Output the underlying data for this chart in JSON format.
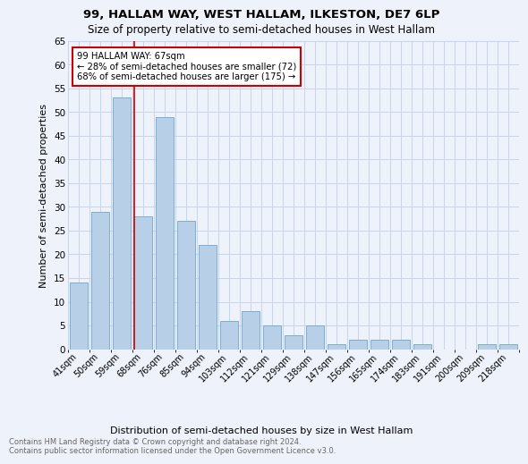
{
  "title1": "99, HALLAM WAY, WEST HALLAM, ILKESTON, DE7 6LP",
  "title2": "Size of property relative to semi-detached houses in West Hallam",
  "xlabel": "Distribution of semi-detached houses by size in West Hallam",
  "ylabel": "Number of semi-detached properties",
  "footnote": "Contains HM Land Registry data © Crown copyright and database right 2024.\nContains public sector information licensed under the Open Government Licence v3.0.",
  "categories": [
    "41sqm",
    "50sqm",
    "59sqm",
    "68sqm",
    "76sqm",
    "85sqm",
    "94sqm",
    "103sqm",
    "112sqm",
    "121sqm",
    "129sqm",
    "138sqm",
    "147sqm",
    "156sqm",
    "165sqm",
    "174sqm",
    "183sqm",
    "191sqm",
    "200sqm",
    "209sqm",
    "218sqm"
  ],
  "values": [
    14,
    29,
    53,
    28,
    49,
    27,
    22,
    6,
    8,
    5,
    3,
    5,
    1,
    2,
    2,
    2,
    1,
    0,
    0,
    1,
    1
  ],
  "bar_color": "#b8cfe8",
  "bar_edge_color": "#7aaed4",
  "property_line_index": 3,
  "annotation_text": "99 HALLAM WAY: 67sqm\n← 28% of semi-detached houses are smaller (72)\n68% of semi-detached houses are larger (175) →",
  "annotation_box_color": "#ffffff",
  "annotation_box_edge_color": "#cc0000",
  "line_color": "#cc0000",
  "ylim": [
    0,
    65
  ],
  "yticks": [
    0,
    5,
    10,
    15,
    20,
    25,
    30,
    35,
    40,
    45,
    50,
    55,
    60,
    65
  ],
  "grid_color": "#c8d4e8",
  "background_color": "#eef2fa"
}
